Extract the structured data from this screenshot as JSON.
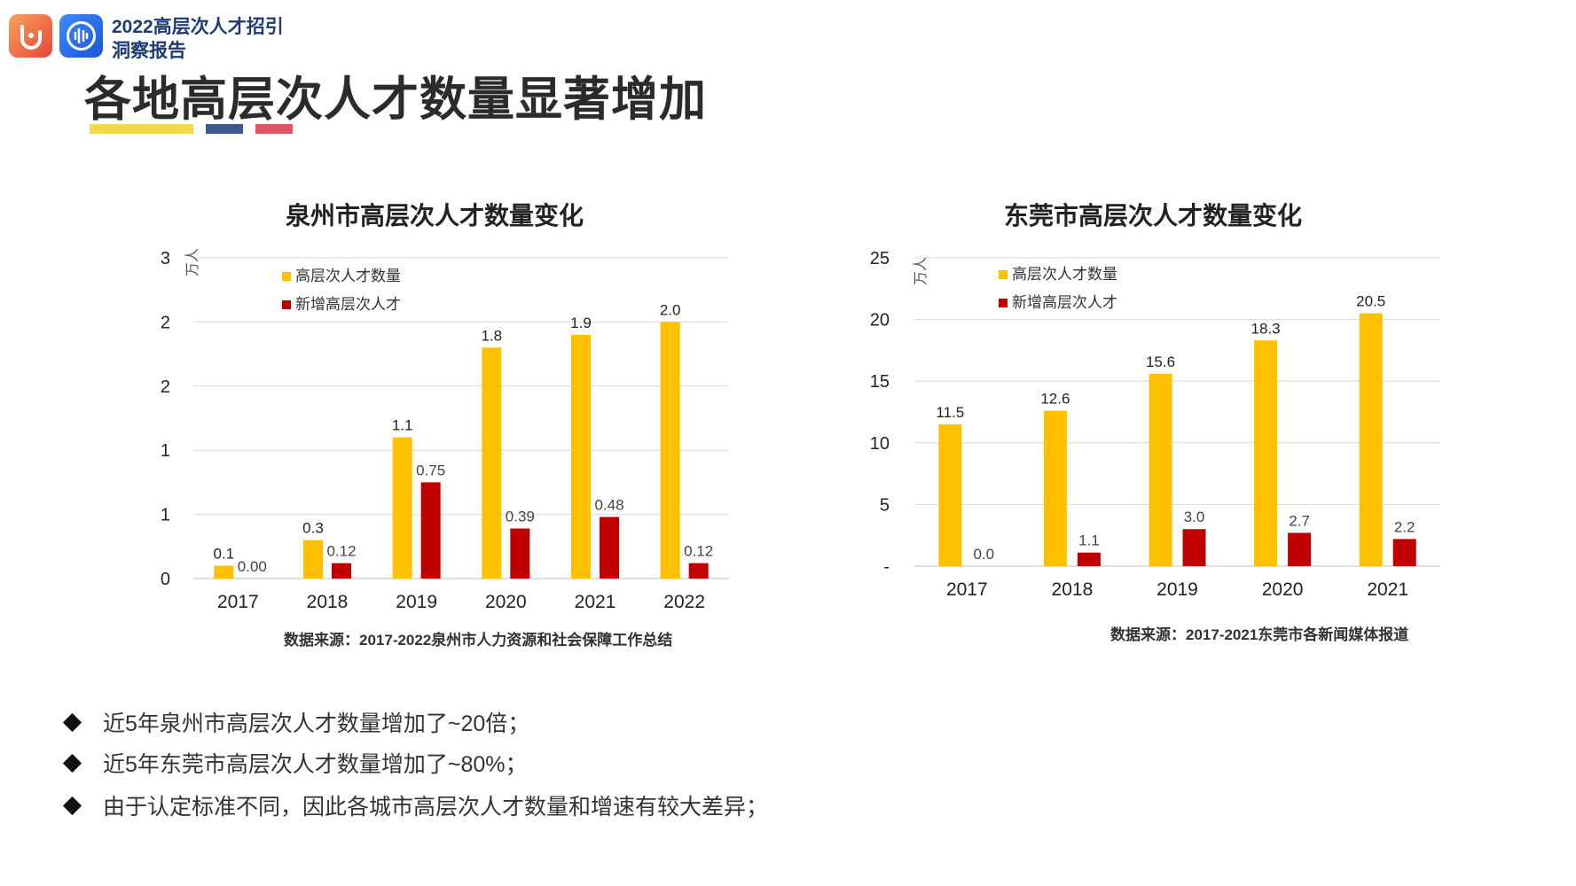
{
  "header": {
    "brand_line1": "2022高层次人才招引",
    "brand_line2": "洞察报告",
    "page_title": "各地高层次人才数量显著增加"
  },
  "colors": {
    "series_total": "#FFC000",
    "series_new": "#C00000",
    "deco_yellow": "#F5D84A",
    "deco_blue": "#3D5A8C",
    "deco_red": "#E05561"
  },
  "chart_data": [
    {
      "type": "bar",
      "title": "泉州市高层次人才数量变化",
      "ylabel": "万人",
      "categories": [
        "2017",
        "2018",
        "2019",
        "2020",
        "2021",
        "2022"
      ],
      "y_tick_labels": [
        "0",
        "1",
        "1",
        "2",
        "2",
        "3"
      ],
      "ylim": [
        0,
        2.5
      ],
      "grid": true,
      "legend_position": "top-left",
      "series": [
        {
          "name": "高层次人才数量",
          "values": [
            0.1,
            0.3,
            1.1,
            1.8,
            1.9,
            2.0
          ],
          "labels": [
            "0.1",
            "0.3",
            "1.1",
            "1.8",
            "1.9",
            "2.0"
          ]
        },
        {
          "name": "新增高层次人才",
          "values": [
            0.0,
            0.12,
            0.75,
            0.39,
            0.48,
            0.12
          ],
          "labels": [
            "0.00",
            "0.12",
            "0.75",
            "0.39",
            "0.48",
            "0.12"
          ]
        }
      ],
      "source": "数据来源：2017-2022泉州市人力资源和社会保障工作总结"
    },
    {
      "type": "bar",
      "title": "东莞市高层次人才数量变化",
      "ylabel": "万人",
      "categories": [
        "2017",
        "2018",
        "2019",
        "2020",
        "2021"
      ],
      "y_tick_labels": [
        "-",
        "5",
        "10",
        "15",
        "20",
        "25"
      ],
      "ylim": [
        0,
        25
      ],
      "grid": true,
      "legend_position": "top-left",
      "series": [
        {
          "name": "高层次人才数量",
          "values": [
            11.5,
            12.6,
            15.6,
            18.3,
            20.5
          ],
          "labels": [
            "11.5",
            "12.6",
            "15.6",
            "18.3",
            "20.5"
          ]
        },
        {
          "name": "新增高层次人才",
          "values": [
            0.0,
            1.1,
            3.0,
            2.7,
            2.2
          ],
          "labels": [
            "0.0",
            "1.1",
            "3.0",
            "2.7",
            "2.2"
          ]
        }
      ],
      "source": "数据来源：2017-2021东莞市各新闻媒体报道"
    }
  ],
  "bullets": [
    "近5年泉州市高层次人才数量增加了~20倍；",
    "近5年东莞市高层次人才数量增加了~80%；",
    "由于认定标准不同，因此各城市高层次人才数量和增速有较大差异；"
  ]
}
